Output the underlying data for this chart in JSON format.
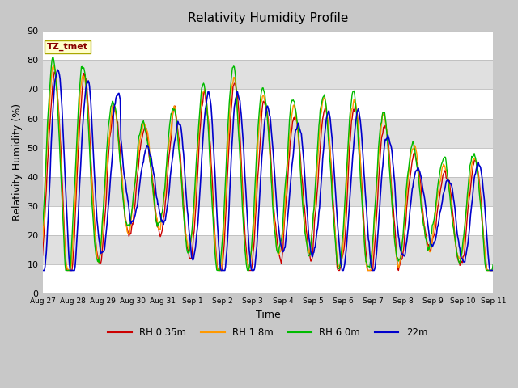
{
  "title": "Relativity Humidity Profile",
  "xlabel": "Time",
  "ylabel": "Relativity Humidity (%)",
  "ylim": [
    0,
    90
  ],
  "yticks": [
    0,
    10,
    20,
    30,
    40,
    50,
    60,
    70,
    80,
    90
  ],
  "fig_bg_color": "#c8c8c8",
  "plot_bg_color": "#e0e0e0",
  "band_colors": [
    "#e8e8e8",
    "#d8d8d8"
  ],
  "line_colors": {
    "rh035": "#cc0000",
    "rh18": "#ff9900",
    "rh60": "#00bb00",
    "m22": "#0000cc"
  },
  "legend_labels": [
    "RH 0.35m",
    "RH 1.8m",
    "RH 6.0m",
    "22m"
  ],
  "annotation_text": "TZ_tmet",
  "annotation_color": "#880000",
  "annotation_bg": "#ffffcc",
  "x_tick_labels": [
    "Aug 27",
    "Aug 28",
    "Aug 29",
    "Aug 30",
    "Aug 31",
    "Sep 1",
    "Sep 2",
    "Sep 3",
    "Sep 4",
    "Sep 5",
    "Sep 6",
    "Sep 7",
    "Sep 8",
    "Sep 9",
    "Sep 10",
    "Sep 11"
  ],
  "duration_days": 15,
  "n_points": 720,
  "figsize": [
    6.4,
    4.8
  ],
  "dpi": 100
}
